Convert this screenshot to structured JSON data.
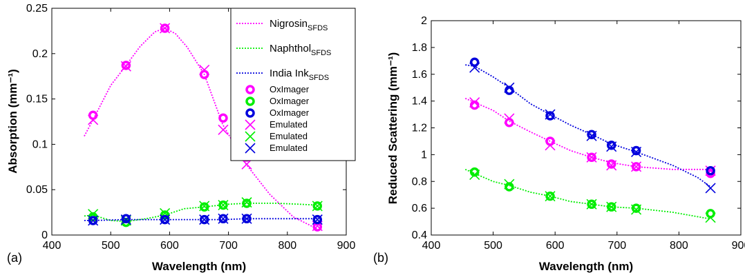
{
  "colors": {
    "magenta": "#ff00ff",
    "green": "#00ee00",
    "blue": "#0000dd"
  },
  "chart_data": [
    {
      "type": "line",
      "panel_label": "(a)",
      "xlabel": "Wavelength (nm)",
      "ylabel": "Absorption (mm⁻¹)",
      "xlim": [
        400,
        900
      ],
      "ylim": [
        0,
        0.25
      ],
      "xticks": [
        "400",
        "500",
        "600",
        "700",
        "800",
        "900"
      ],
      "yticks": [
        "0",
        "0.05",
        "0.1",
        "0.15",
        "0.2",
        "0.25"
      ],
      "grid": false,
      "legend_position": "top-right",
      "legend": {
        "lines": [
          {
            "base": "Nigrosin",
            "sub": "SFDS",
            "color": "magenta"
          },
          {
            "base": "Naphthol",
            "sub": "SFDS",
            "color": "green"
          },
          {
            "base": "India Ink",
            "sub": "SFDS",
            "color": "blue"
          }
        ],
        "markers": [
          {
            "label": "OxImager",
            "marker": "circle",
            "color": "magenta"
          },
          {
            "label": "OxImager",
            "marker": "circle",
            "color": "green"
          },
          {
            "label": "OxImager",
            "marker": "circle",
            "color": "blue"
          },
          {
            "label": "Emulated",
            "marker": "x",
            "color": "magenta"
          },
          {
            "label": "Emulated",
            "marker": "x",
            "color": "green"
          },
          {
            "label": "Emulated",
            "marker": "x",
            "color": "blue"
          }
        ]
      },
      "series": [
        {
          "color": "magenta",
          "sfds": {
            "x": [
              455,
              470,
              500,
              525,
              550,
              575,
              592,
              610,
              630,
              659,
              690,
              730,
              770,
              810,
              850
            ],
            "y": [
              0.109,
              0.127,
              0.165,
              0.186,
              0.208,
              0.224,
              0.228,
              0.222,
              0.207,
              0.177,
              0.122,
              0.078,
              0.045,
              0.02,
              0.007
            ]
          },
          "oximager": {
            "x": [
              470,
              526,
              592,
              659,
              691,
              731,
              851
            ],
            "y": [
              0.132,
              0.187,
              0.228,
              0.177,
              0.129,
              0.086,
              0.009
            ]
          },
          "emulated": {
            "x": [
              470,
              526,
              592,
              659,
              691,
              731,
              851
            ],
            "y": [
              0.127,
              0.186,
              0.228,
              0.182,
              0.116,
              0.078,
              0.01
            ]
          }
        },
        {
          "color": "green",
          "sfds": {
            "x": [
              455,
              470,
              500,
              526,
              560,
              592,
              625,
              659,
              700,
              731,
              780,
              820,
              850
            ],
            "y": [
              0.021,
              0.022,
              0.016,
              0.015,
              0.018,
              0.022,
              0.029,
              0.031,
              0.034,
              0.035,
              0.035,
              0.034,
              0.033
            ]
          },
          "oximager": {
            "x": [
              470,
              526,
              592,
              659,
              691,
              731,
              851
            ],
            "y": [
              0.02,
              0.014,
              0.022,
              0.031,
              0.033,
              0.035,
              0.032
            ]
          },
          "emulated": {
            "x": [
              470,
              526,
              592,
              659,
              691,
              731,
              851
            ],
            "y": [
              0.023,
              0.016,
              0.024,
              0.032,
              0.033,
              0.036,
              0.032
            ]
          }
        },
        {
          "color": "blue",
          "sfds": {
            "x": [
              455,
              470,
              526,
              592,
              659,
              691,
              731,
              790,
              851
            ],
            "y": [
              0.016,
              0.016,
              0.017,
              0.017,
              0.017,
              0.017,
              0.018,
              0.018,
              0.018
            ]
          },
          "oximager": {
            "x": [
              470,
              526,
              592,
              659,
              691,
              731,
              851
            ],
            "y": [
              0.016,
              0.018,
              0.017,
              0.017,
              0.018,
              0.018,
              0.017
            ]
          },
          "emulated": {
            "x": [
              470,
              526,
              592,
              659,
              691,
              731,
              851
            ],
            "y": [
              0.016,
              0.017,
              0.017,
              0.017,
              0.018,
              0.018,
              0.017
            ]
          }
        }
      ]
    },
    {
      "type": "line",
      "panel_label": "(b)",
      "xlabel": "Wavelength (nm)",
      "ylabel": "Reduced Scattering (mm⁻¹)",
      "xlim": [
        400,
        900
      ],
      "ylim": [
        0.4,
        2
      ],
      "xticks": [
        "400",
        "500",
        "600",
        "700",
        "800",
        "900"
      ],
      "yticks": [
        "0.4",
        "0.6",
        "0.8",
        "1",
        "1.2",
        "1.4",
        "1.6",
        "1.8",
        "2"
      ],
      "grid": false,
      "series": [
        {
          "color": "magenta",
          "sfds": {
            "x": [
              455,
              470,
              500,
              526,
              560,
              592,
              625,
              659,
              691,
              731,
              790,
              851
            ],
            "y": [
              1.42,
              1.39,
              1.33,
              1.25,
              1.17,
              1.1,
              1.03,
              0.98,
              0.94,
              0.91,
              0.89,
              0.89
            ]
          },
          "oximager": {
            "x": [
              470,
              526,
              592,
              659,
              691,
              731,
              851
            ],
            "y": [
              1.37,
              1.24,
              1.1,
              0.98,
              0.93,
              0.91,
              0.86
            ]
          },
          "emulated": {
            "x": [
              470,
              526,
              592,
              659,
              691,
              731,
              851
            ],
            "y": [
              1.39,
              1.27,
              1.07,
              0.98,
              0.92,
              0.91,
              0.88
            ]
          }
        },
        {
          "color": "green",
          "sfds": {
            "x": [
              455,
              470,
              500,
              526,
              560,
              592,
              625,
              659,
              691,
              731,
              790,
              851
            ],
            "y": [
              0.89,
              0.86,
              0.8,
              0.77,
              0.72,
              0.69,
              0.65,
              0.63,
              0.61,
              0.6,
              0.57,
              0.52
            ]
          },
          "oximager": {
            "x": [
              470,
              526,
              592,
              659,
              691,
              731,
              851
            ],
            "y": [
              0.87,
              0.76,
              0.69,
              0.63,
              0.61,
              0.6,
              0.56
            ]
          },
          "emulated": {
            "x": [
              470,
              526,
              592,
              659,
              691,
              731,
              851
            ],
            "y": [
              0.85,
              0.78,
              0.69,
              0.63,
              0.61,
              0.59,
              0.53
            ]
          }
        },
        {
          "color": "blue",
          "sfds": {
            "x": [
              455,
              470,
              500,
              526,
              560,
              592,
              625,
              659,
              691,
              731,
              790,
              830,
              851
            ],
            "y": [
              1.67,
              1.66,
              1.58,
              1.5,
              1.38,
              1.3,
              1.22,
              1.15,
              1.08,
              1.02,
              0.92,
              0.83,
              0.76
            ]
          },
          "oximager": {
            "x": [
              470,
              526,
              592,
              659,
              691,
              731,
              851
            ],
            "y": [
              1.69,
              1.48,
              1.29,
              1.15,
              1.07,
              1.03,
              0.88
            ]
          },
          "emulated": {
            "x": [
              470,
              526,
              592,
              659,
              691,
              731,
              851
            ],
            "y": [
              1.65,
              1.5,
              1.3,
              1.14,
              1.06,
              1.02,
              0.75
            ]
          }
        }
      ]
    }
  ]
}
